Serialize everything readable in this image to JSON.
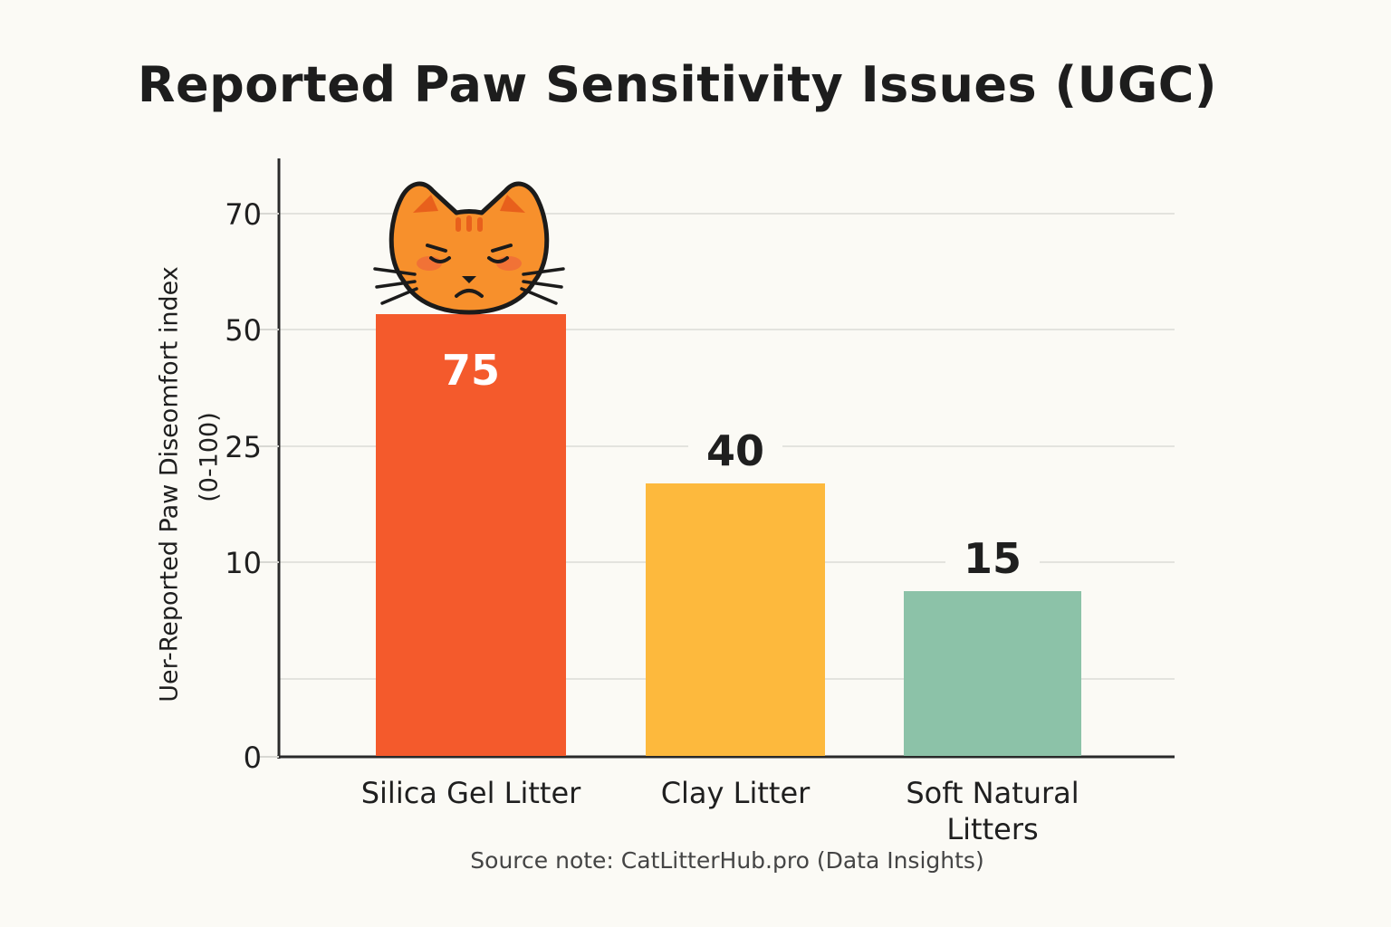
{
  "chart_data": {
    "type": "bar",
    "title": "Reported Paw Sensitivity Issues (UGC)",
    "ylabel_lines": [
      "Uer-Reported Paw Diseomfort index",
      "(0-100)"
    ],
    "xlabel": "",
    "y_ticks": [
      "70",
      "50",
      "25",
      "10",
      "0"
    ],
    "categories": [
      {
        "label_lines": [
          "Silica Gel Litter"
        ]
      },
      {
        "label_lines": [
          "Clay Litter"
        ]
      },
      {
        "label_lines": [
          "Soft Natural",
          "Litters"
        ]
      }
    ],
    "values": [
      75,
      40,
      15
    ],
    "data_labels": [
      "75",
      "40",
      "15"
    ],
    "colors": [
      "#f45a2c",
      "#fdb93d",
      "#8cc2a8"
    ],
    "data_label_colors": [
      "#ffffff",
      "#1f1f1f",
      "#1f1f1f"
    ],
    "grid": true,
    "legend": "none",
    "icon": "sad-cat-icon"
  },
  "source_note": "Source note: CatLitterHub.pro (Data Insights)"
}
